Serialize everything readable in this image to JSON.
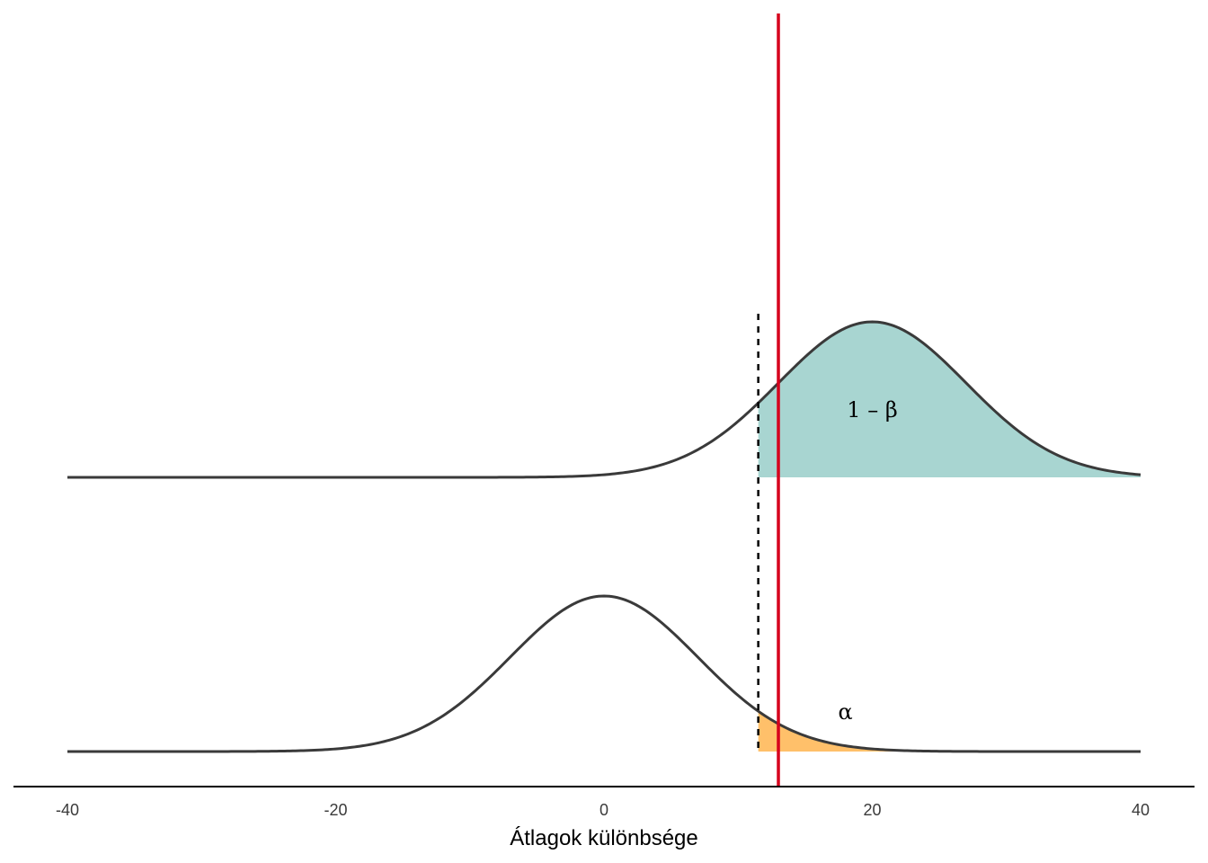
{
  "chart_data": {
    "type": "area",
    "title": "",
    "xlabel": "Átlagok különbsége",
    "ylabel": "",
    "xlim": [
      -40,
      40
    ],
    "xticks": [
      -40,
      -20,
      0,
      20,
      40
    ],
    "grid": false,
    "legend": "none",
    "series": [
      {
        "distribution": "normal",
        "mean": 0,
        "sd": 7,
        "baseline": "lower"
      },
      {
        "distribution": "normal",
        "mean": 20,
        "sd": 7,
        "baseline": "upper"
      }
    ],
    "critical_value": 11.5,
    "observed_value": 13,
    "annotations": [
      {
        "text": "1 – β",
        "x": 20,
        "region": "upper"
      },
      {
        "text": "α",
        "x": 18,
        "region": "lower"
      }
    ],
    "colors": {
      "curve": "#3a3a3a",
      "power_fill": "#a8d5d1",
      "alpha_fill": "#ffc06a",
      "observed_line": "#d6001c",
      "critical_line": "#000000",
      "axis": "#000000"
    }
  }
}
